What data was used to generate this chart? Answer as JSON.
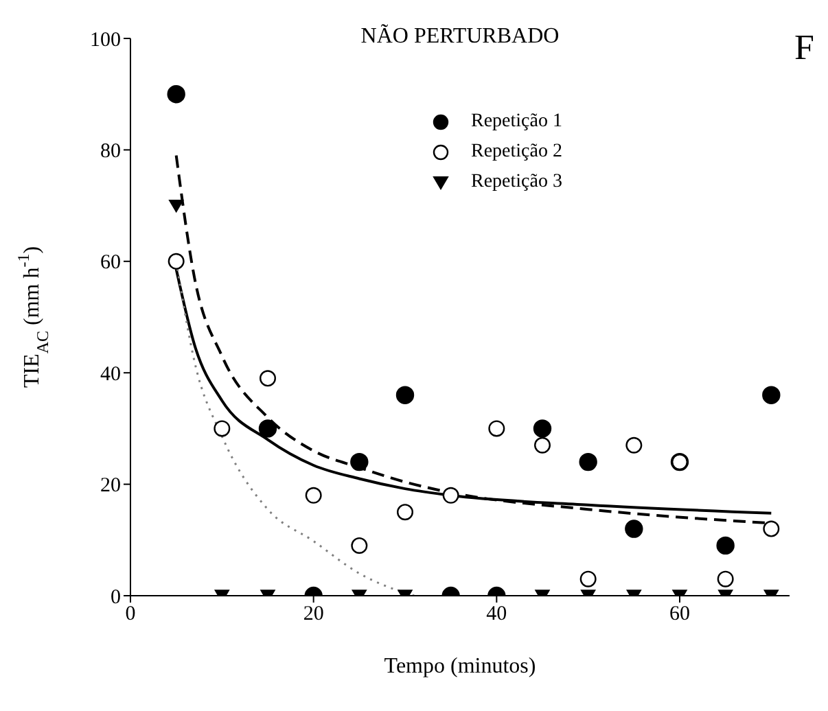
{
  "chart_data": {
    "type": "scatter",
    "title": "NÃO PERTURBADO",
    "annotations": [
      "F"
    ],
    "xlabel": "Tempo (minutos)",
    "ylabel": "TIE$_{AC}$ (mm h$^{-1}$)",
    "x": [
      5,
      10,
      15,
      20,
      25,
      30,
      35,
      40,
      45,
      50,
      55,
      60,
      65,
      70
    ],
    "series": [
      {
        "name": "Repetição 1",
        "color": "#000000",
        "marker": "circle",
        "values": [
          90,
          null,
          30,
          0,
          24,
          36,
          0,
          0,
          30,
          24,
          12,
          24,
          9,
          36
        ]
      },
      {
        "name": "Repetição 2",
        "color": "#ffffff",
        "marker": "circle",
        "values": [
          60,
          30,
          39,
          18,
          9,
          15,
          18,
          30,
          27,
          3,
          27,
          24,
          3,
          12
        ]
      },
      {
        "name": "Repetição 3",
        "color": "#000000",
        "marker": "triangle",
        "values": [
          70,
          0,
          0,
          null,
          0,
          0,
          null,
          null,
          0,
          0,
          0,
          0,
          0,
          0
        ]
      },
      {
        "type": "line",
        "color": "#000000",
        "marker": "none",
        "line_style": "solid",
        "x": [
          5,
          7,
          10,
          15,
          20,
          25,
          30,
          35,
          50,
          70
        ],
        "values": [
          58.6,
          45,
          35,
          28,
          23.4,
          21,
          19.2,
          18,
          16.3,
          14.8
        ]
      },
      {
        "type": "line",
        "color": "#000000",
        "marker": "none",
        "line_style": "dashed",
        "x": [
          5,
          7,
          10,
          15,
          20,
          25,
          30,
          35,
          50,
          70
        ],
        "values": [
          79,
          57,
          43,
          32,
          26,
          23,
          20.4,
          18.5,
          15.5,
          13
        ]
      },
      {
        "type": "line",
        "color": "#808080",
        "marker": "none",
        "line_style": "dotted",
        "x": [
          5,
          7,
          10,
          15,
          20,
          25,
          30,
          31
        ],
        "values": [
          60,
          42,
          28.6,
          15.5,
          9.8,
          4,
          0.5,
          0
        ]
      }
    ],
    "xlim": [
      0,
      72
    ],
    "xticks": [
      0,
      20,
      40,
      60
    ],
    "ylim": [
      0,
      100
    ],
    "yticks": [
      0,
      20,
      40,
      60,
      80,
      100
    ],
    "legend": "top right"
  }
}
